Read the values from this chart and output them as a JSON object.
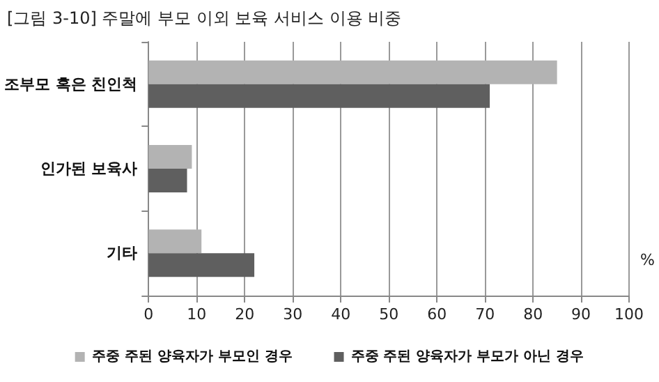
{
  "chart_data": {
    "type": "bar",
    "orientation": "horizontal",
    "title": "[그림 3-10] 주말에 부모 이외 보육 서비스 이용 비중",
    "xlabel": "%",
    "categories": [
      "조부모 혹은 친인척",
      "인가된 보육사",
      "기타"
    ],
    "series": [
      {
        "name": "주중 주된 양육자가 부모인 경우",
        "color": "#b3b3b3",
        "values": [
          85,
          9,
          11
        ]
      },
      {
        "name": "주중 주된 양육자가 부모가 아닌 경우",
        "color": "#5f5f5f",
        "values": [
          71,
          8,
          22
        ]
      }
    ],
    "xlim": [
      0,
      100
    ],
    "xticks": [
      0,
      10,
      20,
      30,
      40,
      50,
      60,
      70,
      80,
      90,
      100
    ],
    "grid": "x",
    "legend": "bottom"
  }
}
